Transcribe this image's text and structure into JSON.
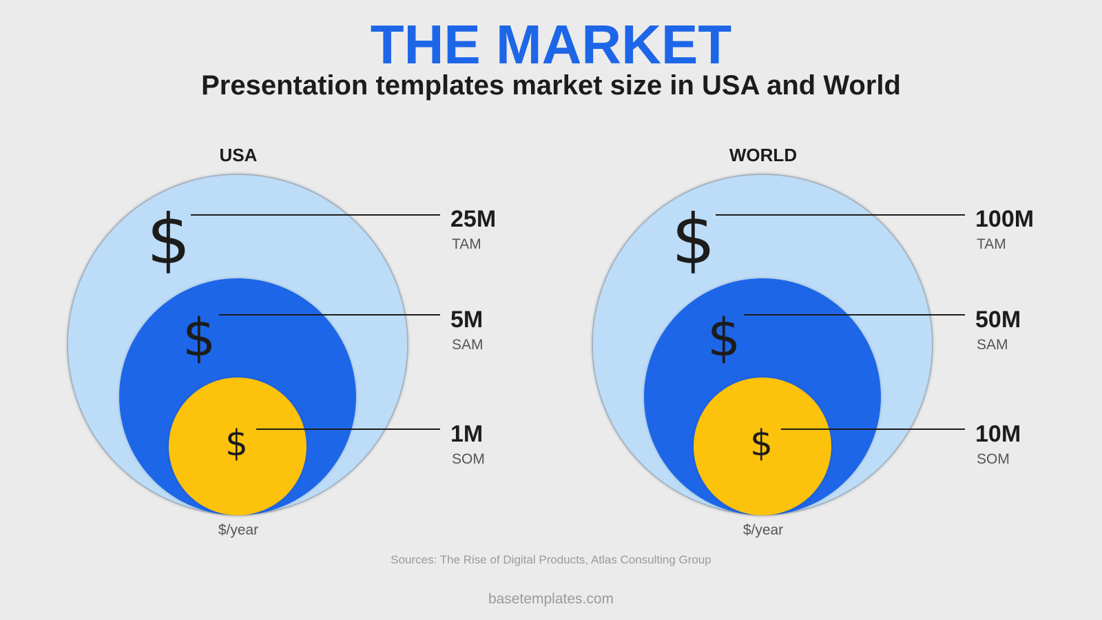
{
  "title": "THE MARKET",
  "subtitle": "Presentation templates market size in USA and World",
  "markets": [
    {
      "region": "USA",
      "unit": "$/year",
      "tiers": [
        {
          "value": "25M",
          "label": "TAM",
          "symbol": "$"
        },
        {
          "value": "5M",
          "label": "SAM",
          "symbol": "$"
        },
        {
          "value": "1M",
          "label": "SOM",
          "symbol": "$"
        }
      ]
    },
    {
      "region": "WORLD",
      "unit": "$/year",
      "tiers": [
        {
          "value": "100M",
          "label": "TAM",
          "symbol": "$"
        },
        {
          "value": "50M",
          "label": "SAM",
          "symbol": "$"
        },
        {
          "value": "10M",
          "label": "SOM",
          "symbol": "$"
        }
      ]
    }
  ],
  "colors": {
    "title": "#1e66e8",
    "tam": "#bcdcf7",
    "sam": "#1e66e8",
    "som": "#fdc20b",
    "background": "#ebebeb"
  },
  "sources": "Sources: The Rise of Digital Products, Atlas Consulting Group",
  "footer": "basetemplates.com"
}
